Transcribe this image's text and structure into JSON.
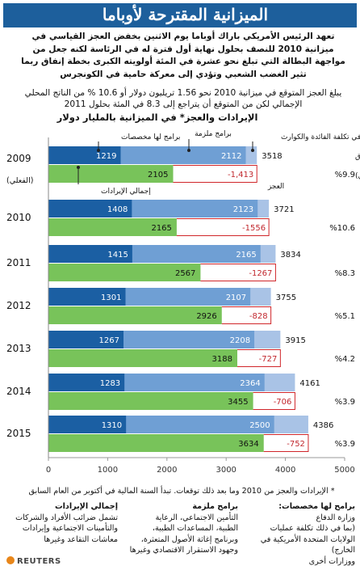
{
  "title": "الميزانية المقترحة لأوباما",
  "intro": "تعهد الرئيس الأمريكي باراك أوباما يوم الاثنين بخفض العجز القياسي في ميزانية 2010 للنصف بحلول نهاية أول فترة له في الرئاسة لكنه جعل من مواجهة البطالة التي تبلغ نحو عشرة في المئة أولويته الكبرى بخطة إنفاق ربما تثير الغضب الشعبي وتؤدي إلى معركة حامية في الكونجرس",
  "subtext": "يبلغ العجز المتوقع في ميزانية 2010 نحو 1.56 تريليون دولار أو 10.6 % من الناتج المحلي الإجمالي لكن من المتوقع أن يتراجع إلى 8.3 في المئة بحلول 2011",
  "chart_title": "الإيرادات والعجز* في الميزانية بالمليار دولار",
  "labels": {
    "programs_with_allocations": "برامج لها مخصصات",
    "mandatory_programs": "برامج ملزمة",
    "net_interest": "صافي تكلفة الفائدة والكوارث",
    "total_spending": "إجمالي أوجه الإنفاق",
    "gdp_pct": "(من الناتج المحلي)",
    "deficit": "العجز",
    "total_revenue": "إجمالي الإيرادات",
    "actual": "(الفعلي)"
  },
  "footnote": "* الإيرادات والعجز من 2010 وما بعد ذلك توقعات. تبدأ السنة المالية في أكتوبر من العام السابق",
  "legend": {
    "col1_title": "برامج لها مخصصات:",
    "col1_lines": [
      "وزارة الدفاع",
      "(بما في ذلك تكلفة عمليات",
      "الولايات المتحدة الأمريكية في الخارج)",
      "ووزارات أخرى"
    ],
    "col2_title": "برامج ملزمة",
    "col2_lines": [
      "التأمين الاجتماعي، الرعاية",
      "الطبية، المساعدات الطبية،",
      "وبرنامج إغاثة الأصول المتعثرة،",
      "وجهود الاستقرار الاقتصادي وغيرها"
    ],
    "col3_title": "إجمالي الإيرادات",
    "col3_lines": [
      "تشمل ضرائب الأفراد والشركات",
      "والتأمينات الاجتماعية وإيرادات",
      "معاشات التقاعد وغيرها"
    ]
  },
  "source": "REUTERS",
  "colors": {
    "title_bg": "#1d5f9c",
    "programs_with_allocations": "#1b5fa3",
    "mandatory_programs": "#6f9fd4",
    "net_interest": "#a9c3e6",
    "revenue": "#78c35a",
    "deficit_line": "#d0262a",
    "deficit_text": "#c1272d"
  },
  "chart_data": {
    "type": "bar",
    "xlim": [
      0,
      5000
    ],
    "xticks": [
      0,
      1000,
      2000,
      3000,
      4000,
      5000
    ],
    "categories": [
      "2009",
      "2010",
      "2011",
      "2012",
      "2013",
      "2014",
      "2015"
    ],
    "series": [
      {
        "name": "برامج لها مخصصات",
        "values": [
          1219,
          1408,
          1415,
          1301,
          1267,
          1283,
          1310
        ]
      },
      {
        "name": "برامج ملزمة",
        "values": [
          2112,
          2123,
          2165,
          2107,
          2208,
          2364,
          2500
        ]
      },
      {
        "name": "إجمالي أوجه الإنفاق",
        "values": [
          3518,
          3721,
          3834,
          3755,
          3915,
          4161,
          4386
        ]
      },
      {
        "name": "إجمالي الإيرادات",
        "values": [
          2105,
          2165,
          2567,
          2926,
          3188,
          3455,
          3634
        ]
      },
      {
        "name": "العجز",
        "values": [
          -1413,
          -1556,
          -1267,
          -828,
          -727,
          -706,
          -752
        ]
      }
    ],
    "deficit_gdp_labels": [
      "%9.9",
      "%10.6",
      "%8.3",
      "%5.1",
      "%4.2",
      "%3.9",
      "%3.9"
    ],
    "deficit_labels": [
      "-1,413",
      "-1556",
      "-1267",
      "-828",
      "-727",
      "-706",
      "-752"
    ]
  }
}
